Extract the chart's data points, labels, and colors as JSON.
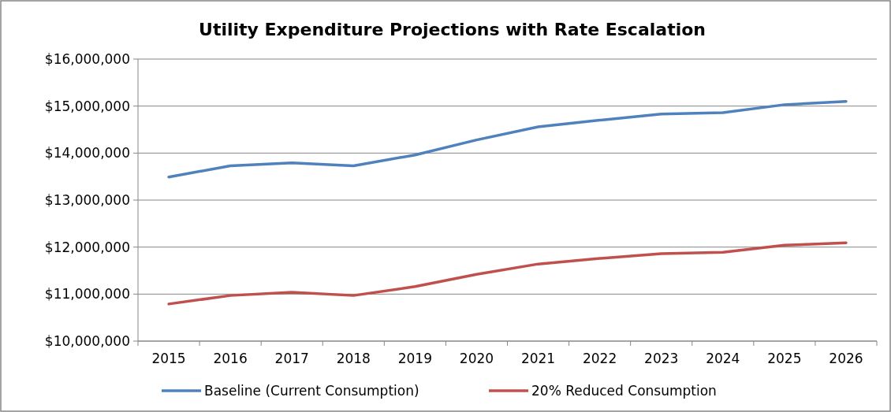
{
  "chart_data": {
    "type": "line",
    "title": "Utility Expenditure Projections with Rate Escalation",
    "categories": [
      "2015",
      "2016",
      "2017",
      "2018",
      "2019",
      "2020",
      "2021",
      "2022",
      "2023",
      "2024",
      "2025",
      "2026"
    ],
    "series": [
      {
        "name": "Baseline (Current Consumption)",
        "color": "#4f81bd",
        "values": [
          13490000,
          13730000,
          13790000,
          13730000,
          13960000,
          14280000,
          14560000,
          14700000,
          14830000,
          14860000,
          15030000,
          15100000
        ]
      },
      {
        "name": "20% Reduced Consumption",
        "color": "#c0504d",
        "values": [
          10790000,
          10970000,
          11040000,
          10970000,
          11160000,
          11420000,
          11640000,
          11760000,
          11860000,
          11890000,
          12040000,
          12090000
        ]
      }
    ],
    "ylim": [
      10000000,
      16000000
    ],
    "yticks": [
      {
        "value": 10000000,
        "label": "$10,000,000"
      },
      {
        "value": 11000000,
        "label": "$11,000,000"
      },
      {
        "value": 12000000,
        "label": "$12,000,000"
      },
      {
        "value": 13000000,
        "label": "$13,000,000"
      },
      {
        "value": 14000000,
        "label": "$14,000,000"
      },
      {
        "value": 15000000,
        "label": "$15,000,000"
      },
      {
        "value": 16000000,
        "label": "$16,000,000"
      }
    ],
    "grid": "y",
    "legend": "bottom",
    "marker": "none",
    "line_style": "solid"
  }
}
